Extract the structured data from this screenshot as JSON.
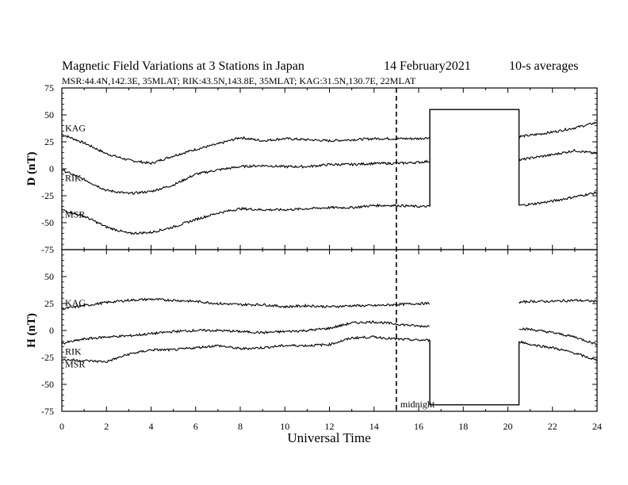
{
  "chart_data": {
    "type": "line",
    "title_parts": [
      "Magnetic Field Variations at 3 Stations in Japan",
      "14 February2021",
      "10-s averages"
    ],
    "subtitle": "MSR:44.4N,142.3E, 35MLAT;  RIK:43.5N,143.8E, 35MLAT;  KAG:31.5N,130.7E, 22MLAT",
    "xlabel": "Universal Time",
    "xlim": [
      0,
      24
    ],
    "xticks": [
      "0",
      "2",
      "4",
      "6",
      "8",
      "10",
      "12",
      "14",
      "16",
      "18",
      "20",
      "22",
      "24"
    ],
    "midnight_ut": 15,
    "midnight_label": "midnight",
    "data_gap": [
      16.5,
      20.5
    ],
    "panels": [
      {
        "ylabel": "D (nT)",
        "ylim": [
          -75,
          75
        ],
        "yticks": [
          "75",
          "50",
          "25",
          "0",
          "-25",
          "-50",
          "-75"
        ],
        "series": [
          {
            "name": "KAG",
            "x": [
              0,
              1,
              2,
              3,
              4,
              5,
              6,
              7,
              8,
              9,
              10,
              11,
              12,
              13,
              14,
              15,
              16,
              16.5,
              20.5,
              21,
              22,
              23,
              24
            ],
            "values": [
              32,
              24,
              14,
              8,
              5,
              12,
              18,
              23,
              29,
              26,
              28,
              27,
              26,
              27,
              28,
              28,
              28,
              29,
              30,
              31,
              34,
              38,
              43
            ]
          },
          {
            "name": "RIK",
            "x": [
              0,
              1,
              2,
              3,
              4,
              5,
              6,
              7,
              8,
              9,
              10,
              11,
              12,
              13,
              14,
              15,
              16,
              16.5,
              20.5,
              21,
              22,
              23,
              24
            ],
            "values": [
              -1,
              -10,
              -20,
              -23,
              -21,
              -15,
              -5,
              -1,
              2,
              3,
              2,
              2,
              4,
              4,
              5,
              5,
              6,
              7,
              8,
              10,
              13,
              17,
              14
            ]
          },
          {
            "name": "MSR",
            "x": [
              0,
              1,
              2,
              3,
              4,
              5,
              6,
              7,
              8,
              9,
              10,
              11,
              12,
              13,
              14,
              15,
              16,
              16.5,
              20.5,
              21,
              22,
              23,
              24
            ],
            "values": [
              -38,
              -44,
              -54,
              -60,
              -59,
              -54,
              -47,
              -41,
              -37,
              -38,
              -38,
              -37,
              -36,
              -36,
              -34,
              -34,
              -35,
              -35,
              -34,
              -33,
              -30,
              -26,
              -22
            ]
          }
        ]
      },
      {
        "ylabel": "H (nT)",
        "ylim": [
          -75,
          75
        ],
        "yticks": [
          "75",
          "50",
          "25",
          "0",
          "-25",
          "-50",
          "-75"
        ],
        "series": [
          {
            "name": "KAG",
            "x": [
              0,
              1,
              2,
              3,
              4,
              5,
              6,
              7,
              8,
              9,
              10,
              11,
              12,
              13,
              14,
              15,
              16,
              16.5,
              20.5,
              21,
              22,
              23,
              24
            ],
            "values": [
              20,
              23,
              26,
              28,
              29,
              28,
              27,
              25,
              24,
              24,
              22,
              23,
              22,
              23,
              23,
              24,
              25,
              25,
              26,
              27,
              27,
              28,
              27
            ]
          },
          {
            "name": "RIK",
            "x": [
              0,
              1,
              2,
              3,
              4,
              5,
              6,
              7,
              8,
              9,
              10,
              11,
              12,
              13,
              14,
              15,
              16,
              16.5,
              20.5,
              21,
              22,
              23,
              24
            ],
            "values": [
              -12,
              -8,
              -6,
              -5,
              -3,
              -1,
              0,
              0,
              -1,
              -2,
              -1,
              0,
              2,
              7,
              8,
              6,
              4,
              4,
              2,
              1,
              -2,
              -6,
              -13
            ]
          },
          {
            "name": "MSR",
            "x": [
              0,
              1,
              2,
              3,
              4,
              5,
              6,
              7,
              8,
              9,
              10,
              11,
              12,
              13,
              14,
              15,
              16,
              16.5,
              20.5,
              21,
              22,
              23,
              24
            ],
            "values": [
              -27,
              -28,
              -29,
              -22,
              -18,
              -18,
              -16,
              -14,
              -17,
              -16,
              -14,
              -14,
              -13,
              -7,
              -6,
              -8,
              -9,
              -9,
              -10,
              -13,
              -16,
              -21,
              -28
            ]
          }
        ]
      }
    ]
  }
}
